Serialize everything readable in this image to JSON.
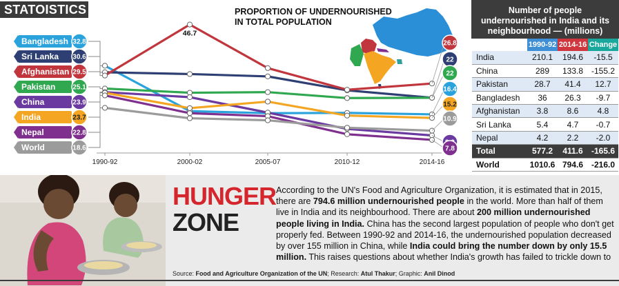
{
  "badge": "STATOISTICS",
  "chart_title_line1": "PROPORTION OF UNDERNOURISHED",
  "chart_title_line2": "IN TOTAL POPULATION",
  "chart_data": {
    "type": "line",
    "title": "PROPORTION OF UNDERNOURISHED IN TOTAL POPULATION",
    "categories": [
      "1990-92",
      "2000-02",
      "2005-07",
      "2010-12",
      "2014-16"
    ],
    "ylim": [
      5,
      48
    ],
    "grid": false,
    "legend_placement": "left",
    "annotations": [
      {
        "label": "46.7",
        "x": "2000-02",
        "y": 46.7
      }
    ],
    "series": [
      {
        "name": "Bangladesh",
        "color": "#2aa3dc",
        "values": [
          32.8,
          17.5,
          16.8,
          16.9,
          16.4
        ]
      },
      {
        "name": "Sri Lanka",
        "color": "#2e3f73",
        "values": [
          30.6,
          30.0,
          29.2,
          24.5,
          22.0
        ]
      },
      {
        "name": "Afghanistan",
        "color": "#c1353d",
        "values": [
          29.5,
          46.7,
          32.0,
          24.7,
          26.8
        ]
      },
      {
        "name": "Pakistan",
        "color": "#2fa84f",
        "values": [
          25.1,
          23.7,
          23.9,
          21.9,
          22.0
        ]
      },
      {
        "name": "China",
        "color": "#6a3aa0",
        "values": [
          23.9,
          22.2,
          17.0,
          11.5,
          9.3
        ]
      },
      {
        "name": "India",
        "color": "#f4a522",
        "values": [
          23.7,
          18.5,
          20.7,
          16.0,
          15.2
        ]
      },
      {
        "name": "Nepal",
        "color": "#7f2f8e",
        "values": [
          22.8,
          16.8,
          15.8,
          9.7,
          7.8
        ]
      },
      {
        "name": "World",
        "color": "#9b9b9b",
        "values": [
          18.6,
          15.1,
          14.4,
          11.9,
          10.9
        ]
      }
    ]
  },
  "table": {
    "title": "Number of people undernourished in India and its neighbourhood — (millions)",
    "columns": [
      "1990-92",
      "2014-16",
      "Change"
    ],
    "rows": [
      {
        "name": "India",
        "a": "210.1",
        "b": "194.6",
        "c": "-15.5"
      },
      {
        "name": "China",
        "a": "289",
        "b": "133.8",
        "c": "-155.2"
      },
      {
        "name": "Pakistan",
        "a": "28.7",
        "b": "41.4",
        "c": "12.7"
      },
      {
        "name": "Bangladesh",
        "a": "36",
        "b": "26.3",
        "c": "-9.7"
      },
      {
        "name": "Afghanistan",
        "a": "3.8",
        "b": "8.6",
        "c": "4.8"
      },
      {
        "name": "Sri Lanka",
        "a": "5.4",
        "b": "4.7",
        "c": "-0.7"
      },
      {
        "name": "Nepal",
        "a": "4.2",
        "b": "2.2",
        "c": "-2.0"
      }
    ],
    "total": {
      "name": "Total",
      "a": "577.2",
      "b": "411.6",
      "c": "-165.6"
    },
    "world": {
      "name": "World",
      "a": "1010.6",
      "b": "794.6",
      "c": "-216.0"
    }
  },
  "headline": {
    "line1": "HUNGER",
    "line2": "ZONE"
  },
  "article": {
    "p1_a": "According to the UN's Food and Agriculture Organization, it is estimated that in 2015, there are ",
    "p1_b": "794.6 million undernourished people",
    "p1_c": " in the world. More than half of them live in India and its neighbourhood. There are about ",
    "p1_d": "200 million undernourished people living in India.",
    "p1_e": " China has the second largest population of people who don't get properly fed. Between 1990-92 and 2014-16, the undernourished population decreased by over 155 million in China, while ",
    "p1_f": "India could bring the number down by only 15.5 million.",
    "p1_g": " This raises questions about whether India's growth has failed to trickle down to the bottom."
  },
  "source": {
    "label_source": "Source: ",
    "source_val": "Food and Agriculture Organization of the UN",
    "label_research": "; Research: ",
    "research_val": "Atul Thakur",
    "label_graphic": "; Graphic: ",
    "graphic_val": "Anil Dinod"
  },
  "colors": {
    "accent_red": "#d4262c",
    "dark": "#3c3c3c",
    "table_blue": "#3f8fd6",
    "table_red": "#d0363d",
    "table_teal": "#1aa89c"
  }
}
